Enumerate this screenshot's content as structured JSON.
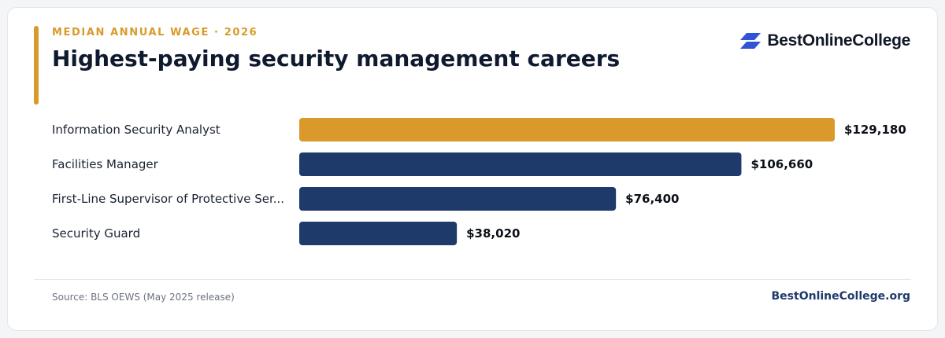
{
  "header": {
    "eyebrow": "MEDIAN ANNUAL WAGE · 2026",
    "title": "Highest-paying security management careers"
  },
  "logo": {
    "text": "BestOnlineCollege",
    "icon": "stacked-parallelogram-logo-icon",
    "color": "#2f55d4"
  },
  "colors": {
    "accent": "#d99a2b",
    "bar": "#1d3a6b",
    "label": "#1a2233",
    "value": "#0b0f17"
  },
  "chart_data": {
    "type": "bar",
    "orientation": "horizontal",
    "title": "Highest-paying security management careers",
    "categories": [
      "Information Security Analyst",
      "Facilities Manager",
      "First-Line Supervisor of Protective Ser...",
      "Security Guard"
    ],
    "values": [
      129180,
      106660,
      76400,
      38020
    ],
    "value_labels": [
      "$129,180",
      "$106,660",
      "$76,400",
      "$38,020"
    ],
    "highlight_index": 0,
    "xlim": [
      0,
      129180
    ],
    "grid": false,
    "legend": "none"
  },
  "footer": {
    "source": "Source: BLS OEWS (May 2025 release)",
    "site": "BestOnlineCollege.org"
  }
}
